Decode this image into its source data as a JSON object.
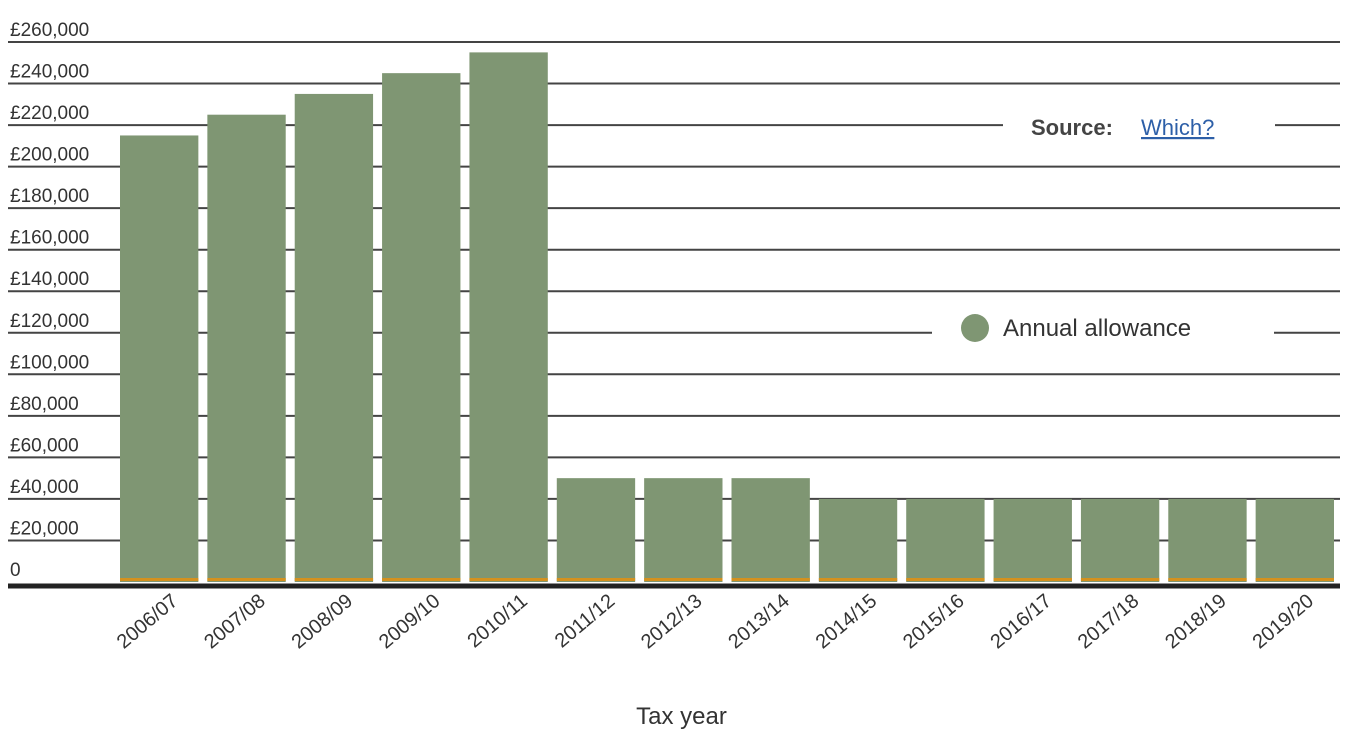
{
  "chart_data": {
    "type": "bar",
    "categories": [
      "2006/07",
      "2007/08",
      "2008/09",
      "2009/10",
      "2010/11",
      "2011/12",
      "2012/13",
      "2013/14",
      "2014/15",
      "2015/16",
      "2016/17",
      "2017/18",
      "2018/19",
      "2019/20"
    ],
    "series": [
      {
        "name": "Annual allowance",
        "values": [
          215000,
          225000,
          235000,
          245000,
          255000,
          50000,
          50000,
          50000,
          40000,
          40000,
          40000,
          40000,
          40000,
          40000
        ]
      }
    ],
    "xlabel": "Tax year",
    "ylabel": "",
    "ylim": [
      0,
      260000
    ],
    "yticks": [
      "0",
      "£20,000",
      "£40,000",
      "£60,000",
      "£80,000",
      "£100,000",
      "£120,000",
      "£140,000",
      "£160,000",
      "£180,000",
      "£200,000",
      "£220,000",
      "£240,000",
      "£260,000"
    ],
    "grid": true,
    "legend_placement": "right",
    "colors": {
      "bar": "#7f9673",
      "baseline_accent": "#d4911e",
      "axis": "#222222",
      "grid": "#444444"
    }
  },
  "source": {
    "label": "Source:",
    "link_text": "Which?"
  }
}
